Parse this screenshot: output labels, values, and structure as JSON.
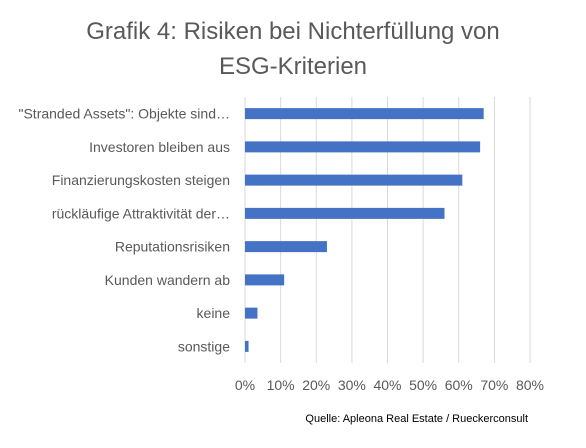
{
  "chart_data": {
    "type": "bar",
    "orientation": "horizontal",
    "title_line1": "Grafik 4: Risiken bei Nichterfüllung von",
    "title_line2": "ESG-Kriterien",
    "categories": [
      "\"Stranded Assets\": Objekte sind…",
      "Investoren bleiben aus",
      "Finanzierungskosten steigen",
      "rückläufige Attraktivität der…",
      "Reputationsrisiken",
      "Kunden wandern ab",
      "keine",
      "sonstige"
    ],
    "values": [
      67,
      66,
      61,
      56,
      23,
      11,
      3.5,
      1
    ],
    "xlim": [
      0,
      80
    ],
    "xticks": [
      0,
      10,
      20,
      30,
      40,
      50,
      60,
      70,
      80
    ],
    "tick_suffix": "%",
    "grid": true,
    "legend": "none",
    "bar_color": "#4472c4",
    "grid_color": "#d9d9d9",
    "source": "Quelle: Apleona Real Estate / Rueckerconsult"
  }
}
